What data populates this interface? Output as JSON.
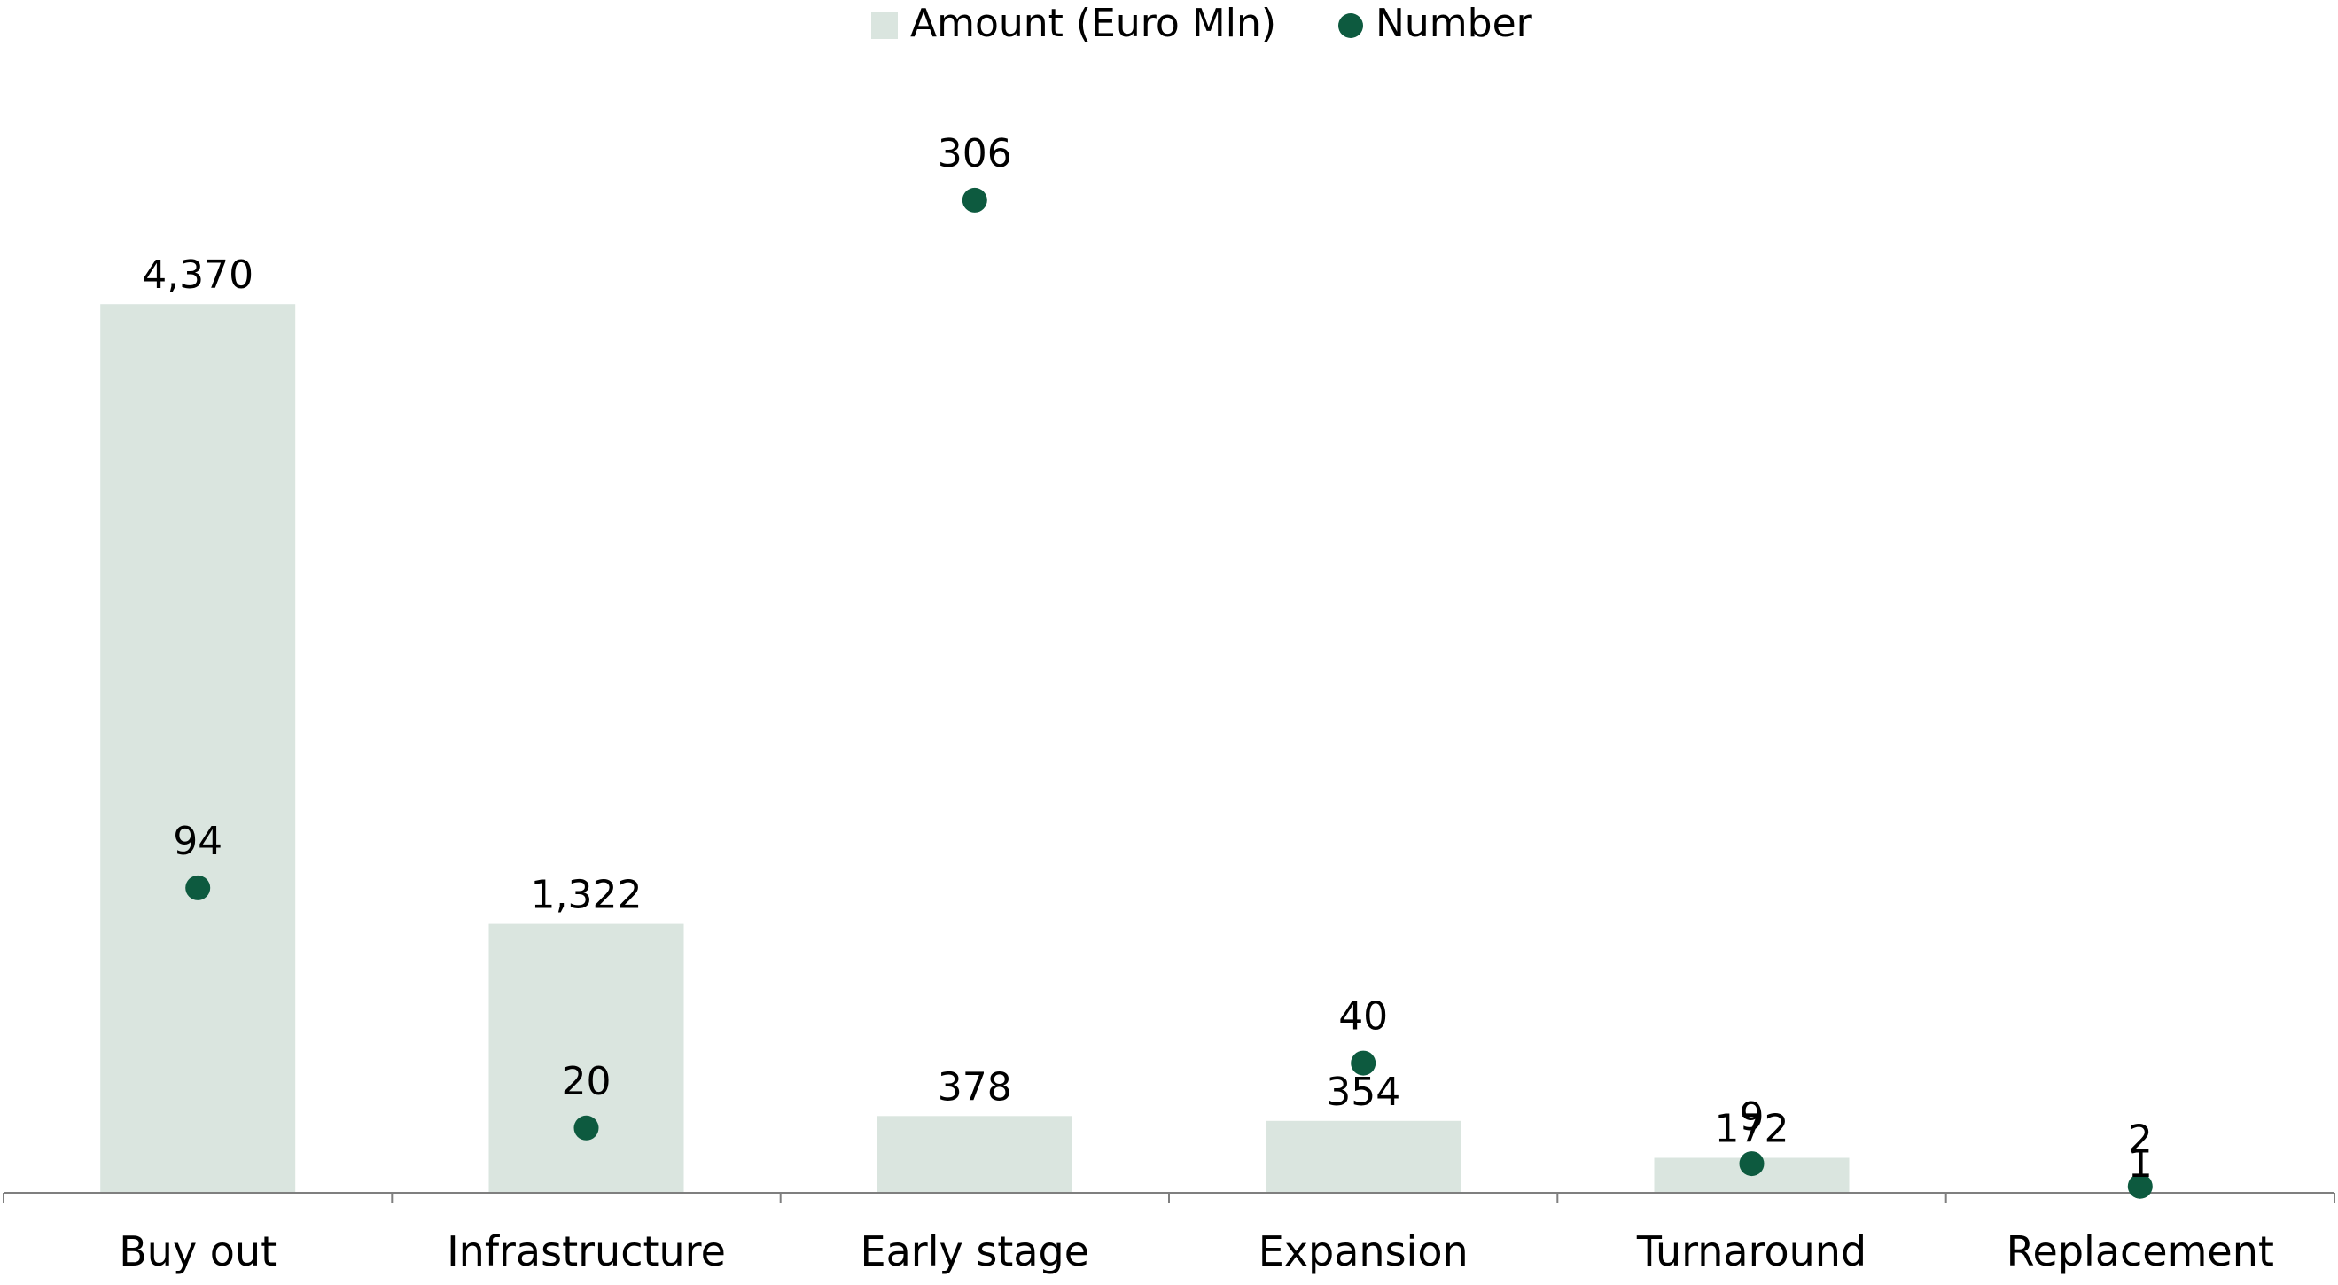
{
  "chart_data": {
    "type": "bar",
    "categories": [
      "Buy out",
      "Infrastructure",
      "Early stage",
      "Expansion",
      "Turnaround",
      "Replacement"
    ],
    "series": [
      {
        "name": "Amount (Euro Mln)",
        "kind": "bar",
        "axis": "left",
        "values": [
          4370,
          1322,
          378,
          354,
          172,
          1
        ],
        "labels": [
          "4,370",
          "1,322",
          "378",
          "354",
          "172",
          "1"
        ]
      },
      {
        "name": "Number",
        "kind": "dot",
        "axis": "right",
        "values": [
          94,
          20,
          306,
          40,
          9,
          2
        ],
        "labels": [
          "94",
          "20",
          "306",
          "40",
          "9",
          "2"
        ]
      }
    ],
    "ylim_left": [
      0,
      4750
    ],
    "ylim_right": [
      0,
      330
    ],
    "grid": false,
    "legend_position": "top-center",
    "colors": {
      "bar": "#dae5df",
      "dot": "#0d5a3f",
      "axis": "#7f7f7f",
      "text": "#000000"
    }
  }
}
